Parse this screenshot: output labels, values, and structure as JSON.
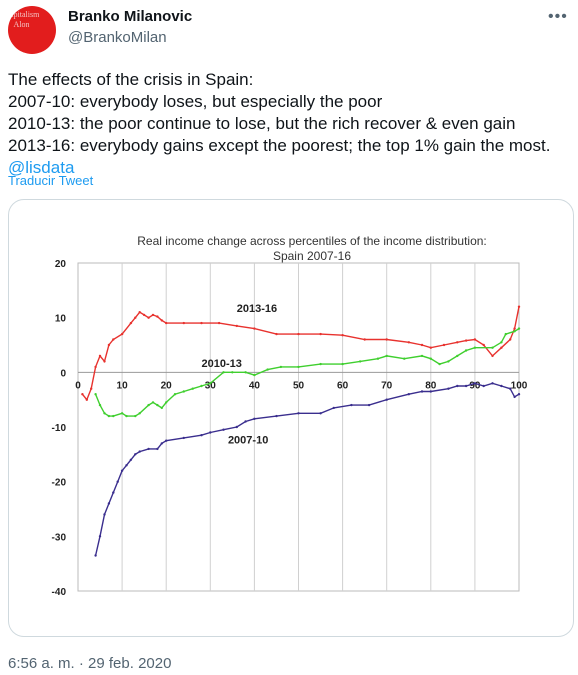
{
  "header": {
    "name": "Branko Milanovic",
    "handle": "@BrankoMilan",
    "avatar_text": "apitalism\n  Alon\n\n\n  iko",
    "more_icon": "more-horizontal-icon"
  },
  "tweet": {
    "lines": [
      "The effects of the crisis in Spain:",
      "2007-10: everybody loses, but especially the poor",
      "2010-13: the poor continue to lose, but the rich recover & even gain",
      "2013-16: everybody gains except the poorest; the top 1% gain the most."
    ],
    "mention": "@lisdata",
    "translate_label": "Traducir Tweet",
    "timestamp": "6:56 a. m. · 29 feb. 2020"
  },
  "colors": {
    "accent": "#1d9bf0",
    "avatar_bg": "#e21d1d",
    "series_2013_16": "#e8322e",
    "series_2010_13": "#3fcf2e",
    "series_2007_10": "#3a2e8e"
  },
  "chart_data": {
    "type": "line",
    "title": "Real income change across percentiles of the income distribution: Spain 2007-16",
    "title_lines": [
      "Real income change across percentiles of the income distribution:",
      "Spain 2007-16"
    ],
    "xlabel": "",
    "ylabel": "",
    "xlim": [
      0,
      100
    ],
    "ylim": [
      -40,
      20
    ],
    "xticks": [
      0,
      10,
      20,
      30,
      40,
      50,
      60,
      70,
      80,
      90,
      100
    ],
    "yticks": [
      20,
      10,
      0,
      -10,
      -20,
      -30,
      -40
    ],
    "grid": "vertical",
    "series": [
      {
        "name": "2013-16",
        "color": "#e8322e",
        "points": [
          [
            1,
            -4
          ],
          [
            2,
            -5
          ],
          [
            3,
            -3
          ],
          [
            4,
            1
          ],
          [
            5,
            3
          ],
          [
            6,
            2
          ],
          [
            7,
            5
          ],
          [
            8,
            6
          ],
          [
            10,
            7
          ],
          [
            12,
            9
          ],
          [
            13,
            10
          ],
          [
            14,
            11
          ],
          [
            15,
            10.5
          ],
          [
            16,
            10
          ],
          [
            17,
            10.5
          ],
          [
            18,
            10.2
          ],
          [
            19,
            9.5
          ],
          [
            20,
            9
          ],
          [
            24,
            9
          ],
          [
            28,
            9
          ],
          [
            32,
            9
          ],
          [
            36,
            8.5
          ],
          [
            40,
            8
          ],
          [
            45,
            7
          ],
          [
            50,
            7
          ],
          [
            55,
            7
          ],
          [
            60,
            6.8
          ],
          [
            65,
            6
          ],
          [
            70,
            6
          ],
          [
            75,
            5.5
          ],
          [
            78,
            5
          ],
          [
            80,
            4.5
          ],
          [
            83,
            5
          ],
          [
            86,
            5.5
          ],
          [
            88,
            5.8
          ],
          [
            90,
            6
          ],
          [
            92,
            5
          ],
          [
            94,
            3
          ],
          [
            96,
            4.5
          ],
          [
            98,
            6
          ],
          [
            99,
            8
          ],
          [
            100,
            12
          ]
        ]
      },
      {
        "name": "2010-13",
        "color": "#3fcf2e",
        "points": [
          [
            4,
            -4
          ],
          [
            5,
            -6
          ],
          [
            6,
            -7.5
          ],
          [
            7,
            -8
          ],
          [
            8,
            -8
          ],
          [
            10,
            -7.5
          ],
          [
            11,
            -8
          ],
          [
            13,
            -8
          ],
          [
            14,
            -7.5
          ],
          [
            16,
            -6
          ],
          [
            17,
            -5.5
          ],
          [
            18,
            -6
          ],
          [
            19,
            -6.5
          ],
          [
            20,
            -5.5
          ],
          [
            22,
            -4
          ],
          [
            24,
            -3.5
          ],
          [
            26,
            -3
          ],
          [
            28,
            -2.5
          ],
          [
            30,
            -2
          ],
          [
            33,
            0
          ],
          [
            35,
            0
          ],
          [
            38,
            0
          ],
          [
            40,
            -0.5
          ],
          [
            43,
            0.5
          ],
          [
            46,
            1
          ],
          [
            50,
            1
          ],
          [
            55,
            1.5
          ],
          [
            60,
            1.5
          ],
          [
            64,
            2
          ],
          [
            68,
            2.5
          ],
          [
            70,
            3
          ],
          [
            74,
            2.5
          ],
          [
            78,
            3
          ],
          [
            80,
            2.5
          ],
          [
            82,
            1.5
          ],
          [
            84,
            2
          ],
          [
            86,
            3
          ],
          [
            88,
            4
          ],
          [
            90,
            4.5
          ],
          [
            94,
            4.5
          ],
          [
            96,
            5.5
          ],
          [
            97,
            7
          ],
          [
            99,
            7.5
          ],
          [
            100,
            8
          ]
        ]
      },
      {
        "name": "2007-10",
        "color": "#3a2e8e",
        "points": [
          [
            4,
            -33.5
          ],
          [
            5,
            -30
          ],
          [
            6,
            -26
          ],
          [
            7,
            -24
          ],
          [
            8,
            -22
          ],
          [
            9,
            -20
          ],
          [
            10,
            -18
          ],
          [
            11,
            -17
          ],
          [
            12,
            -16
          ],
          [
            13,
            -15
          ],
          [
            14,
            -14.5
          ],
          [
            16,
            -14
          ],
          [
            18,
            -14
          ],
          [
            19,
            -13
          ],
          [
            20,
            -12.5
          ],
          [
            24,
            -12
          ],
          [
            28,
            -11.5
          ],
          [
            30,
            -11
          ],
          [
            33,
            -10.5
          ],
          [
            36,
            -10
          ],
          [
            38,
            -9
          ],
          [
            40,
            -8.5
          ],
          [
            45,
            -8
          ],
          [
            50,
            -7.5
          ],
          [
            55,
            -7.5
          ],
          [
            58,
            -6.5
          ],
          [
            62,
            -6
          ],
          [
            66,
            -6
          ],
          [
            70,
            -5
          ],
          [
            75,
            -4
          ],
          [
            78,
            -3.5
          ],
          [
            80,
            -3.5
          ],
          [
            84,
            -3
          ],
          [
            86,
            -2.5
          ],
          [
            88,
            -2.5
          ],
          [
            90,
            -2
          ],
          [
            92,
            -2.5
          ],
          [
            94,
            -2
          ],
          [
            96,
            -2.5
          ],
          [
            98,
            -3
          ],
          [
            99,
            -4.5
          ],
          [
            100,
            -4
          ]
        ]
      }
    ],
    "series_labels": [
      {
        "text": "2013-16",
        "x": 36,
        "y": 11
      },
      {
        "text": "2010-13",
        "x": 28,
        "y": 1
      },
      {
        "text": "2007-10",
        "x": 34,
        "y": -13
      }
    ]
  }
}
